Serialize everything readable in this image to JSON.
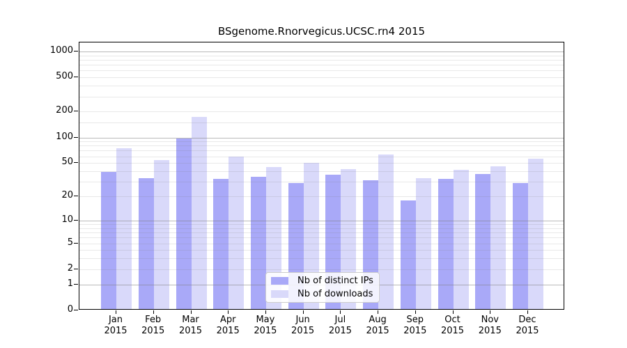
{
  "page": {
    "background": "#ffffff"
  },
  "chart_data": {
    "type": "bar",
    "title": "BSgenome.Rnorvegicus.UCSC.rn4 2015",
    "categories": [
      "Jan",
      "Feb",
      "Mar",
      "Apr",
      "May",
      "Jun",
      "Jul",
      "Aug",
      "Sep",
      "Oct",
      "Nov",
      "Dec"
    ],
    "x_year_label": "2015",
    "series": [
      {
        "name": "Nb of distinct IPs",
        "color": "#a9a9f8",
        "values": [
          38,
          32,
          94,
          31,
          33,
          28,
          35,
          30,
          17,
          31,
          36,
          28
        ]
      },
      {
        "name": "Nb of downloads",
        "color": "#d9d9fa",
        "values": [
          72,
          52,
          167,
          57,
          43,
          48,
          41,
          61,
          32,
          40,
          44,
          54
        ]
      }
    ],
    "yscale": "log10(1+x)",
    "y_ticks": [
      0,
      1,
      2,
      5,
      10,
      20,
      50,
      100,
      200,
      500,
      1000
    ],
    "ylim": [
      0,
      1270
    ],
    "grid": {
      "on": true,
      "major_values": [
        1,
        10,
        100,
        1000
      ],
      "minor_values": [
        2,
        3,
        4,
        6,
        7,
        8,
        9,
        20,
        30,
        40,
        60,
        70,
        80,
        90,
        200,
        300,
        400,
        600,
        700,
        800,
        900,
        50,
        500,
        5,
        150
      ]
    },
    "legend_position": "lower center",
    "colors": {
      "axis": "#000000",
      "grid_major": "#808080",
      "grid_minor": "#c8c8c8"
    }
  }
}
